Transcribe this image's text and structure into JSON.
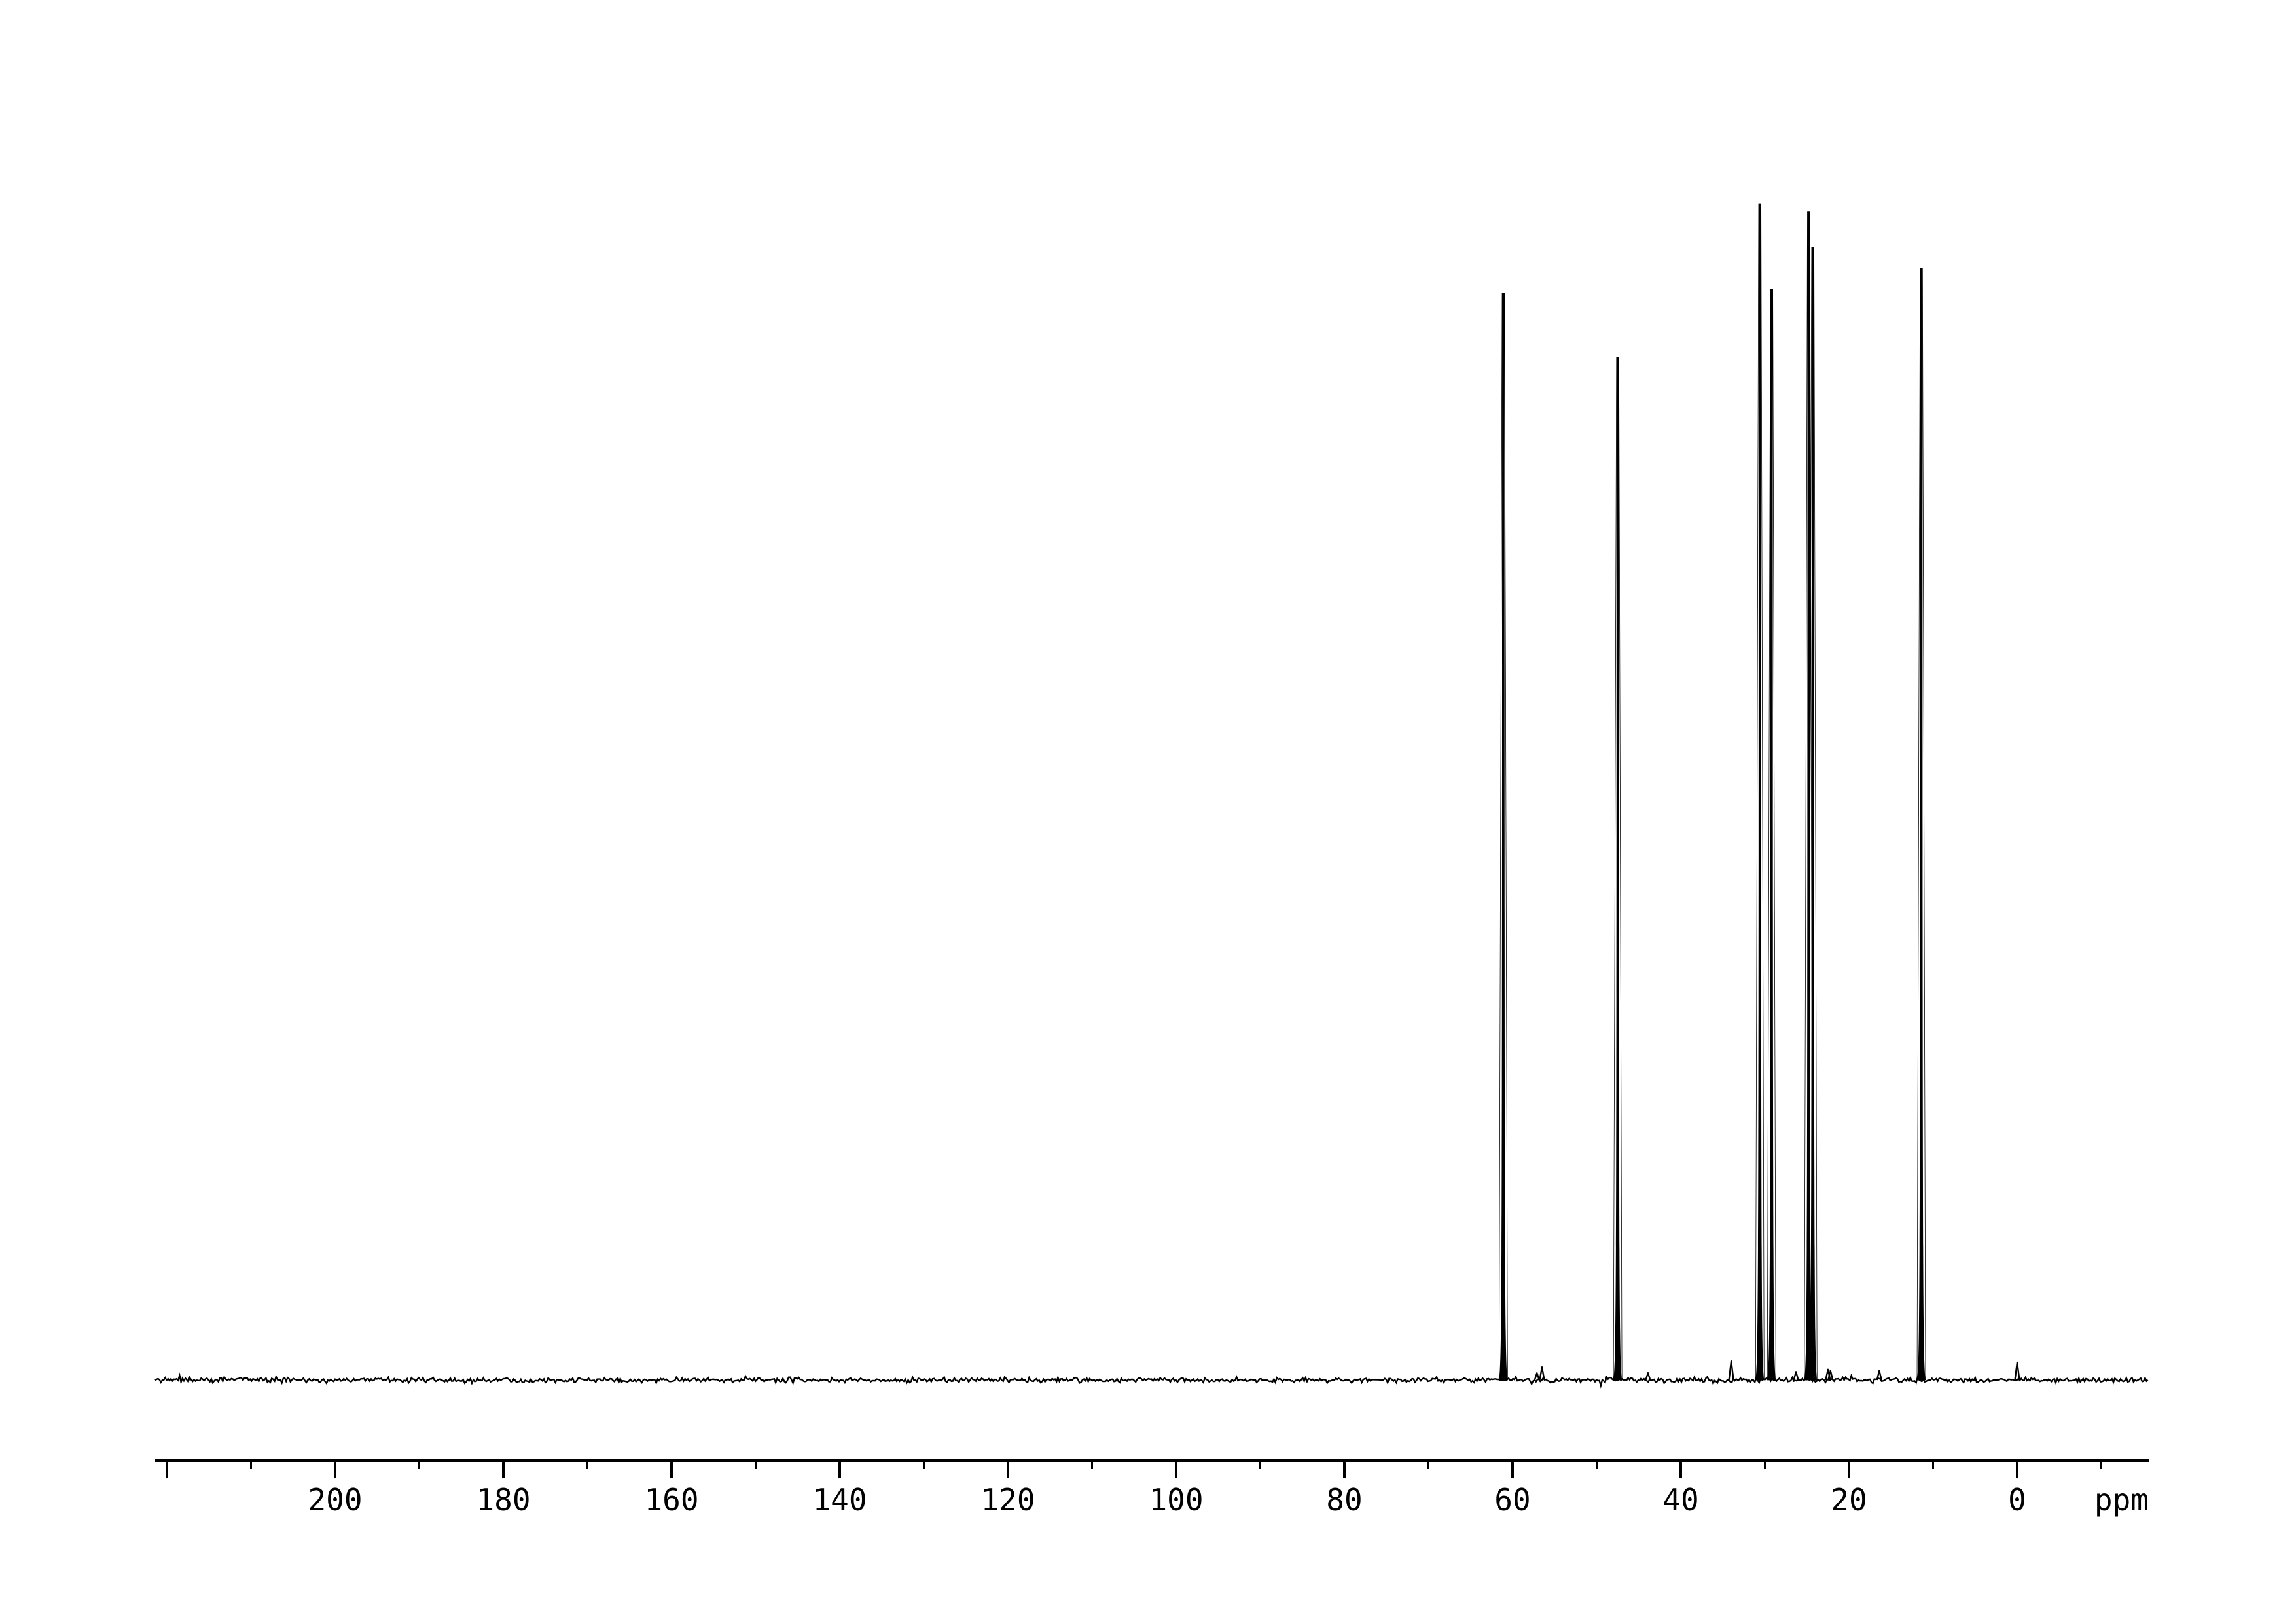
{
  "page": {
    "background_color": "#ffffff",
    "foreground_color": "#000000"
  },
  "chart_data": {
    "type": "line",
    "subtype": "nmr-spectrum-1d",
    "title": "",
    "xlabel": "ppm",
    "ylabel": "",
    "grid": false,
    "legend": "none",
    "line_color": "#000000",
    "x_axis": {
      "unit_label": "ppm",
      "inverted": true,
      "start_ppm": 221.5,
      "end_ppm": -15.6,
      "major_tick_start": 220,
      "major_tick_end": 0,
      "major_tick_step": 20,
      "minor_tick_start": 210,
      "minor_tick_end": -10,
      "minor_tick_step": 20,
      "tick_labels": [
        "200",
        "180",
        "160",
        "140",
        "120",
        "100",
        "80",
        "60",
        "40",
        "20",
        "0"
      ]
    },
    "ylim": [
      0,
      1.05
    ],
    "peaks": [
      {
        "ppm": 61.1,
        "intensity": 0.924
      },
      {
        "ppm": 47.5,
        "intensity": 0.869
      },
      {
        "ppm": 30.6,
        "intensity": 1.0
      },
      {
        "ppm": 29.2,
        "intensity": 0.927
      },
      {
        "ppm": 24.8,
        "intensity": 0.993
      },
      {
        "ppm": 24.3,
        "intensity": 0.963
      },
      {
        "ppm": 11.4,
        "intensity": 0.945
      }
    ],
    "minor_peaks": [
      {
        "ppm": 57.1,
        "intensity": 0.006
      },
      {
        "ppm": 56.5,
        "intensity": 0.011
      },
      {
        "ppm": 43.9,
        "intensity": 0.006
      },
      {
        "ppm": 34.0,
        "intensity": 0.016
      },
      {
        "ppm": 26.3,
        "intensity": 0.007
      },
      {
        "ppm": 22.5,
        "intensity": 0.009
      },
      {
        "ppm": 22.2,
        "intensity": 0.008
      },
      {
        "ppm": 16.4,
        "intensity": 0.008
      },
      {
        "ppm": 0.0,
        "intensity": 0.015
      }
    ],
    "baseline": {
      "noisy": true,
      "relative_noise_amplitude": 0.003
    }
  }
}
